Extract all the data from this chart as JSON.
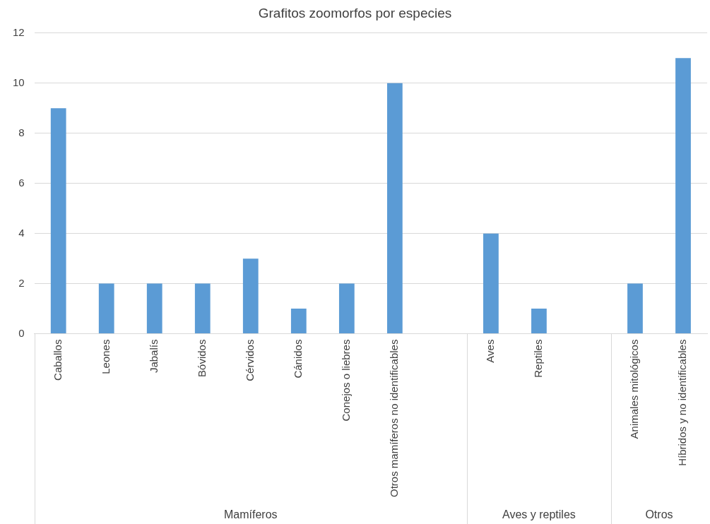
{
  "chart_data": {
    "type": "bar",
    "title": "Grafitos zoomorfos por especies",
    "categories": [
      "Caballos",
      "Leones",
      "Jabalís",
      "Bóvidos",
      "Cérvidos",
      "Cánidos",
      "Conejos o liebres",
      "Otros mamíferos no identificables",
      null,
      "Aves",
      "Reptiles",
      null,
      "Animales mitológicos",
      "Híbridos y no identificables"
    ],
    "values": [
      9,
      2,
      2,
      2,
      3,
      1,
      2,
      10,
      null,
      4,
      1,
      null,
      2,
      11
    ],
    "color": "#5b9bd5",
    "ylim": [
      0,
      12
    ],
    "yticks": [
      0,
      2,
      4,
      6,
      8,
      10,
      12
    ],
    "grid": "y",
    "annotations": [
      "Mamíferos",
      "Aves y reptiles",
      "Otros"
    ]
  }
}
